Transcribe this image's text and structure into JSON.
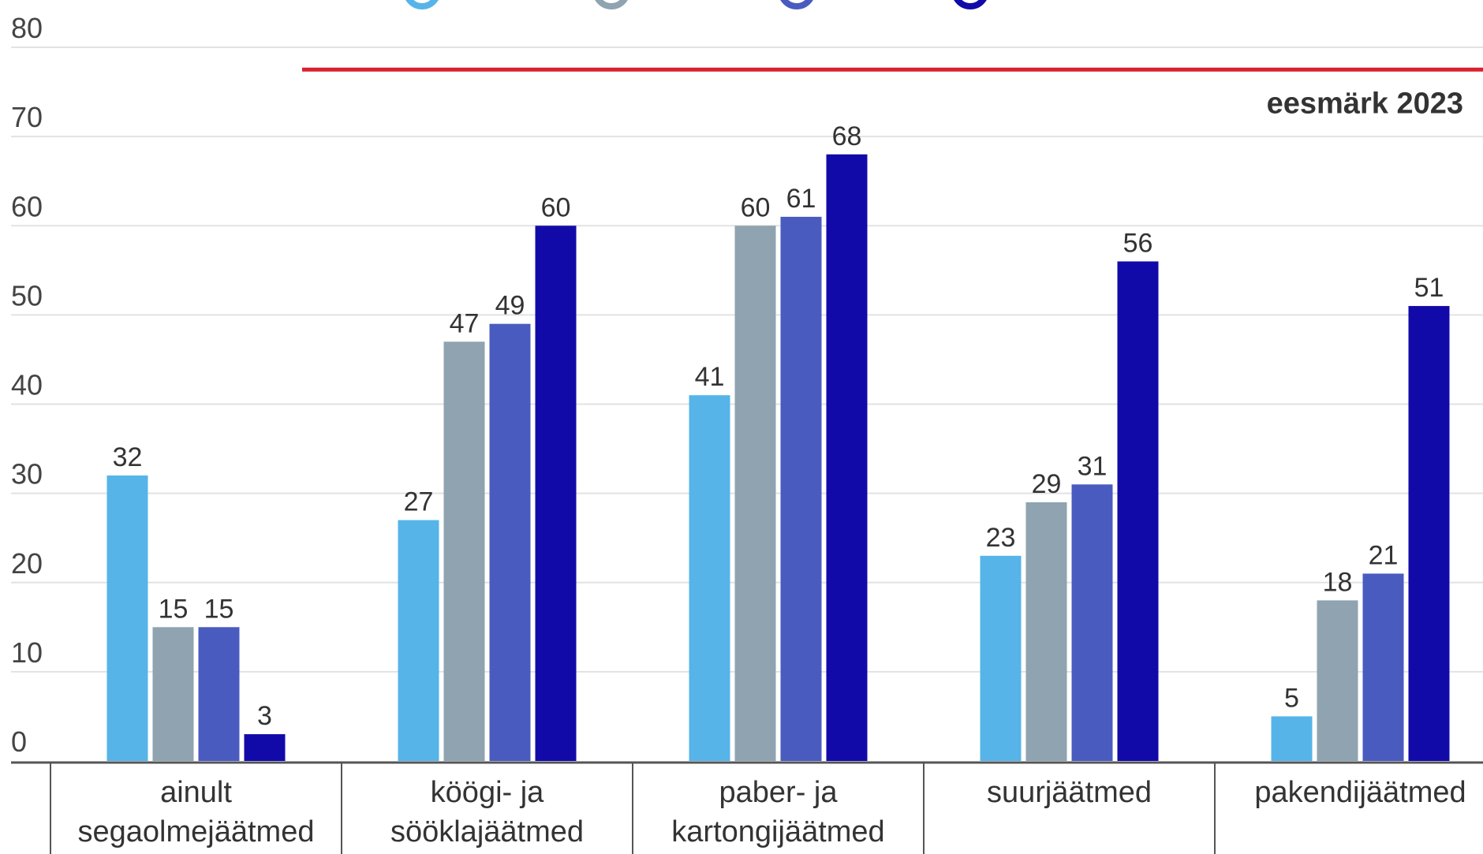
{
  "chart_data": {
    "type": "bar",
    "categories": [
      [
        "ainult",
        "segaolmejäätmed"
      ],
      [
        "köögi- ja",
        "sööklajäätmed"
      ],
      [
        "paber- ja",
        "kartongijäätmed"
      ],
      [
        "suurjäätmed"
      ],
      [
        "pakendijäätmed"
      ]
    ],
    "series": [
      {
        "color": "#56b4e9",
        "values": [
          32,
          27,
          41,
          23,
          5
        ]
      },
      {
        "color": "#8fa3b0",
        "values": [
          15,
          47,
          60,
          29,
          18
        ]
      },
      {
        "color": "#4a5bc0",
        "values": [
          15,
          49,
          61,
          31,
          21
        ]
      },
      {
        "color": "#120aa8",
        "values": [
          3,
          60,
          68,
          56,
          51
        ]
      }
    ],
    "ylim": [
      0,
      80
    ],
    "yticks": [
      0,
      10,
      20,
      30,
      40,
      50,
      60,
      70,
      80
    ],
    "grid": true,
    "target": {
      "value": 77.5,
      "label": "eesmärk 2023",
      "color": "#d8202f",
      "starts_at_category": 1
    },
    "legend_placement": "top"
  }
}
